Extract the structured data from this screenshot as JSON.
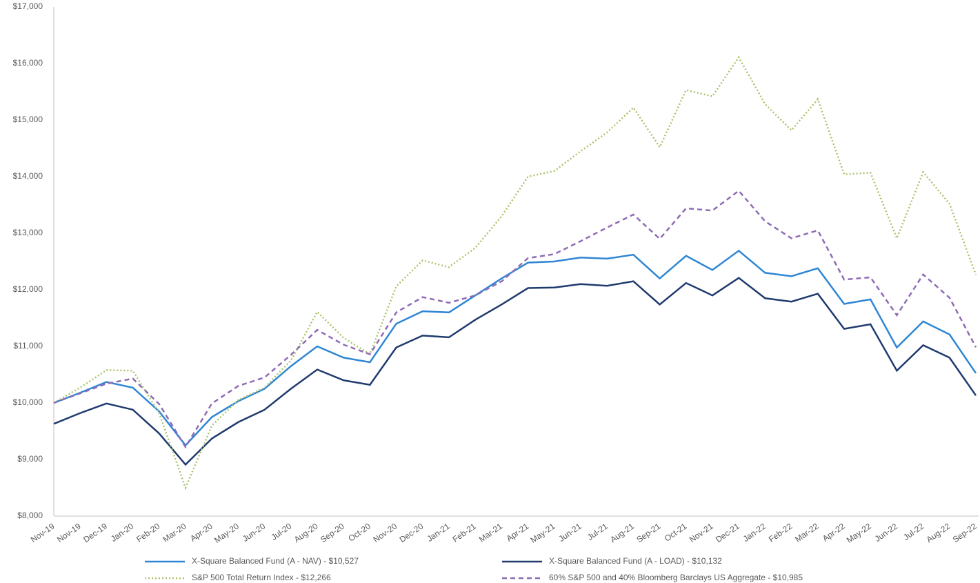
{
  "chart_data": {
    "type": "line",
    "categories": [
      "Nov-19",
      "Nov-19",
      "Dec-19",
      "Jan-20",
      "Feb-20",
      "Mar-20",
      "Apr-20",
      "May-20",
      "Jun-20",
      "Jul-20",
      "Aug-20",
      "Sep-20",
      "Oct-20",
      "Nov-20",
      "Dec-20",
      "Jan-21",
      "Feb-21",
      "Mar-21",
      "Apr-21",
      "May-21",
      "Jun-21",
      "Jul-21",
      "Aug-21",
      "Sep-21",
      "Oct-21",
      "Nov-21",
      "Dec-21",
      "Jan-22",
      "Feb-22",
      "Mar-22",
      "Apr-22",
      "May-22",
      "Jun-22",
      "Jul-22",
      "Aug-22",
      "Sep-22"
    ],
    "series": [
      {
        "name": "X-Square Balanced Fund (A - NAV) - $10,527",
        "color": "#2e86d4",
        "dash": "solid",
        "values": [
          10000,
          10180,
          10370,
          10270,
          9850,
          9250,
          9750,
          10030,
          10250,
          10650,
          11000,
          10800,
          10720,
          11400,
          11620,
          11600,
          11900,
          12200,
          12480,
          12500,
          12570,
          12550,
          12620,
          12200,
          12600,
          12350,
          12690,
          12300,
          12240,
          12380,
          11750,
          11830,
          10980,
          11440,
          11210,
          10527
        ]
      },
      {
        "name": "X-Square Balanced Fund (A - LOAD) - $10,132",
        "color": "#1f3a6e",
        "dash": "solid",
        "values": [
          9630,
          9820,
          9990,
          9880,
          9460,
          8910,
          9370,
          9660,
          9880,
          10250,
          10590,
          10400,
          10320,
          10980,
          11190,
          11160,
          11470,
          11740,
          12030,
          12040,
          12100,
          12070,
          12150,
          11740,
          12120,
          11900,
          12210,
          11850,
          11790,
          11930,
          11310,
          11390,
          10570,
          11020,
          10800,
          10132
        ]
      },
      {
        "name": "S&P 500 Total Return Index - $12,266",
        "color": "#a9c46c",
        "dash": "dotted",
        "values": [
          10000,
          10270,
          10580,
          10570,
          9820,
          8500,
          9600,
          10050,
          10270,
          10750,
          11610,
          11150,
          10860,
          12060,
          12520,
          12400,
          12740,
          13300,
          14000,
          14100,
          14450,
          14780,
          15220,
          14520,
          15530,
          15420,
          16110,
          15280,
          14820,
          15370,
          14040,
          14070,
          12910,
          14080,
          13520,
          12266
        ]
      },
      {
        "name": "60% S&P 500 and 40% Bloomberg Barclays US Aggregate - $10,985",
        "color": "#8e6bb5",
        "dash": "dashed",
        "values": [
          10000,
          10170,
          10340,
          10430,
          9980,
          9220,
          9990,
          10300,
          10450,
          10850,
          11290,
          11030,
          10860,
          11600,
          11870,
          11770,
          11900,
          12150,
          12560,
          12630,
          12860,
          13100,
          13330,
          12900,
          13440,
          13400,
          13750,
          13210,
          12910,
          13050,
          12180,
          12220,
          11550,
          12270,
          11860,
          10985
        ]
      }
    ],
    "ylim": [
      8000,
      17000
    ],
    "yticks": [
      {
        "value": 8000,
        "label": "$8,000"
      },
      {
        "value": 9000,
        "label": "$9,000"
      },
      {
        "value": 10000,
        "label": "$10,000"
      },
      {
        "value": 11000,
        "label": "$11,000"
      },
      {
        "value": 12000,
        "label": "$12,000"
      },
      {
        "value": 13000,
        "label": "$13,000"
      },
      {
        "value": 14000,
        "label": "$14,000"
      },
      {
        "value": 15000,
        "label": "$15,000"
      },
      {
        "value": 16000,
        "label": "$16,000"
      },
      {
        "value": 17000,
        "label": "$17,000"
      }
    ],
    "grid": false,
    "legend": "bottom"
  }
}
